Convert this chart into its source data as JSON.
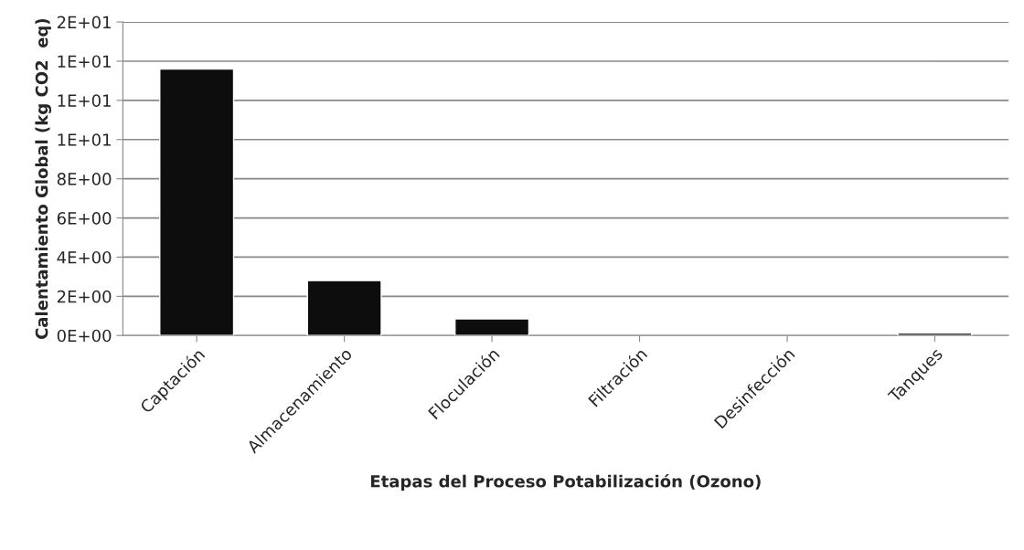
{
  "chart_data": {
    "type": "bar",
    "xlabel": "Etapas del Proceso Potabilización (Ozono)",
    "ylabel": "Calentamiento Global (kg CO2  eq)",
    "categories": [
      "Captación",
      "Almacenamiento",
      "Floculación",
      "Filtración",
      "Desinfección",
      "Tanques"
    ],
    "values": [
      13.6,
      2.8,
      0.85,
      null,
      null,
      0.13
    ],
    "color": "#0d0d0d",
    "ylim": [
      0,
      16
    ],
    "yticks": [
      {
        "value": 0,
        "label": "0E+00"
      },
      {
        "value": 2,
        "label": "2E+00"
      },
      {
        "value": 4,
        "label": "4E+00"
      },
      {
        "value": 6,
        "label": "6E+00"
      },
      {
        "value": 8,
        "label": "8E+00"
      },
      {
        "value": 10,
        "label": "1E+01"
      },
      {
        "value": 12,
        "label": "1E+01"
      },
      {
        "value": 14,
        "label": "1E+01"
      },
      {
        "value": 16,
        "label": "2E+01"
      }
    ],
    "grid": "y"
  }
}
